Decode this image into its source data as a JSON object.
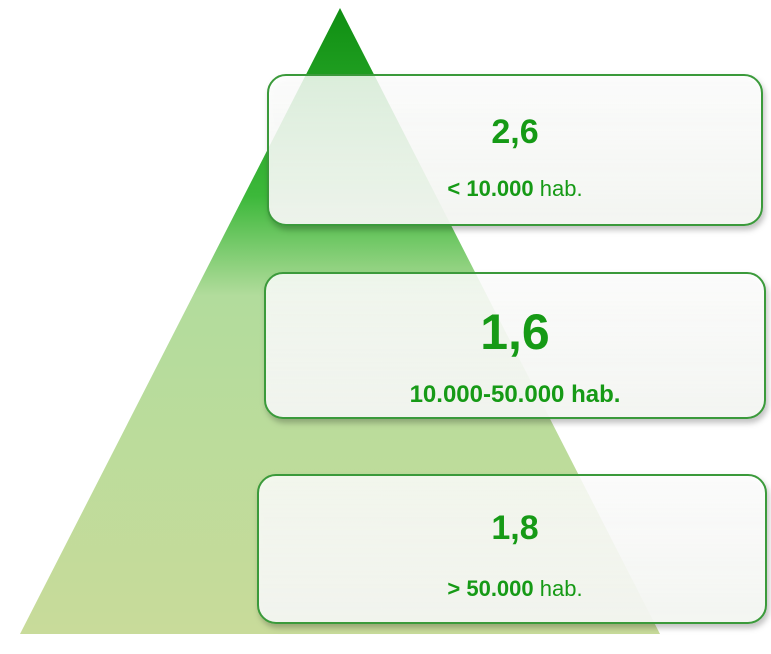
{
  "boxes": [
    {
      "value": "2,6",
      "range": "< 10.000",
      "unit": "hab."
    },
    {
      "value": "1,6",
      "range": "10.000-50.000",
      "unit": "hab."
    },
    {
      "value": "1,8",
      "range": "> 50.000",
      "unit": "hab."
    }
  ]
}
